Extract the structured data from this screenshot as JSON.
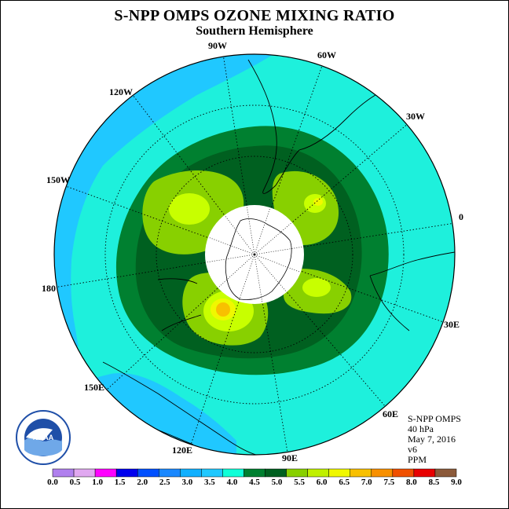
{
  "title": "S-NPP OMPS OZONE MIXING RATIO",
  "subtitle": "Southern Hemisphere",
  "info": {
    "instrument": "S-NPP OMPS",
    "pressure": "40 hPa",
    "date": "May 7, 2016",
    "version": "v6",
    "units": "PPM"
  },
  "longitude_labels": [
    "0",
    "30E",
    "60E",
    "90E",
    "120E",
    "150E",
    "180",
    "150W",
    "120W",
    "90W",
    "60W",
    "30W"
  ],
  "logo": {
    "text": "NOAA",
    "caption": "NATIONAL OCEANIC AND ATMOSPHERIC ADMINISTRATION · U.S. DEPARTMENT OF COMMERCE"
  },
  "colorbar": {
    "ticks": [
      "0.0",
      "0.5",
      "1.0",
      "1.5",
      "2.0",
      "2.5",
      "3.0",
      "3.5",
      "4.0",
      "4.5",
      "5.0",
      "5.5",
      "6.0",
      "6.5",
      "7.0",
      "7.5",
      "8.0",
      "8.5",
      "9.0"
    ],
    "colors": [
      "#b080ee",
      "#e0a8f0",
      "#ff00ff",
      "#0000ee",
      "#0050ff",
      "#1a88ff",
      "#10b0ff",
      "#20c8ff",
      "#10ffd8",
      "#008030",
      "#006020",
      "#88d000",
      "#c0f000",
      "#f0f800",
      "#f8c000",
      "#f89000",
      "#f05000",
      "#e80000",
      "#8b5a3a"
    ]
  },
  "colors": {
    "bg_cyan": "#1ef0dc",
    "ocean_band": "#20c8ff",
    "ozone_45": "#008030",
    "ozone_50": "#006020",
    "ozone_55": "#88d000",
    "ozone_60": "#c8ff00",
    "ozone_65": "#f0f800",
    "ozone_70": "#f8c000"
  }
}
